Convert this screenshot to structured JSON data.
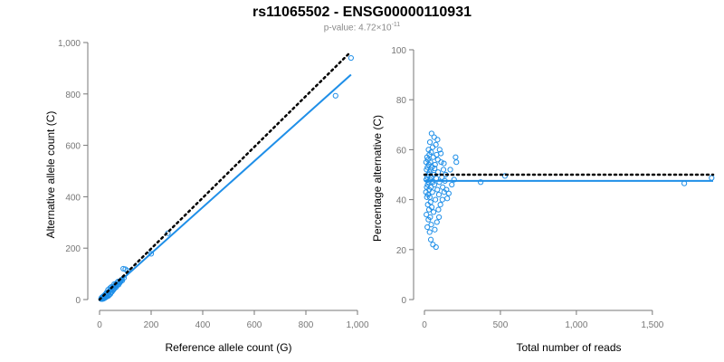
{
  "title": "rs11065502 - ENSG00000110931",
  "subtitle": {
    "prefix": "p-value: 4.72",
    "times": "×",
    "base": "10",
    "exponent": "-11"
  },
  "colors": {
    "points": "#1f8fe8",
    "fit": "#1f8fe8",
    "reference": "#000000",
    "axis": "#777777"
  },
  "chart_data": [
    {
      "type": "scatter",
      "xlabel": "Reference allele count (G)",
      "ylabel": "Alternative allele count (C)",
      "xlim": [
        0,
        1000
      ],
      "ylim": [
        0,
        1000
      ],
      "xticks": [
        0,
        200,
        400,
        600,
        800,
        1000
      ],
      "xtick_labels": [
        "0",
        "200",
        "400",
        "600",
        "800",
        "1,000"
      ],
      "yticks": [
        0,
        200,
        400,
        600,
        800,
        1000
      ],
      "ytick_labels": [
        "0",
        "200",
        "400",
        "600",
        "800",
        "1,000"
      ],
      "grid": false,
      "reference_line": {
        "style": "dotted",
        "x": [
          0,
          970
        ],
        "y": [
          0,
          960
        ]
      },
      "fit_line": {
        "style": "solid",
        "x": [
          0,
          975
        ],
        "y": [
          0,
          875
        ]
      },
      "points": [
        [
          975,
          940
        ],
        [
          915,
          793
        ],
        [
          265,
          258
        ],
        [
          200,
          178
        ],
        [
          108,
          112
        ],
        [
          100,
          118
        ],
        [
          92,
          120
        ],
        [
          95,
          85
        ],
        [
          86,
          78
        ],
        [
          82,
          72
        ],
        [
          78,
          65
        ],
        [
          72,
          70
        ],
        [
          70,
          60
        ],
        [
          66,
          55
        ],
        [
          64,
          48
        ],
        [
          60,
          52
        ],
        [
          58,
          44
        ],
        [
          55,
          40
        ],
        [
          52,
          36
        ],
        [
          50,
          44
        ],
        [
          48,
          30
        ],
        [
          45,
          38
        ],
        [
          44,
          28
        ],
        [
          42,
          22
        ],
        [
          40,
          34
        ],
        [
          38,
          18
        ],
        [
          36,
          30
        ],
        [
          35,
          26
        ],
        [
          34,
          14
        ],
        [
          32,
          24
        ],
        [
          30,
          20
        ],
        [
          29,
          12
        ],
        [
          28,
          28
        ],
        [
          27,
          18
        ],
        [
          26,
          10
        ],
        [
          25,
          22
        ],
        [
          24,
          15
        ],
        [
          23,
          8
        ],
        [
          22,
          20
        ],
        [
          21,
          12
        ],
        [
          20,
          6
        ],
        [
          19,
          16
        ],
        [
          18,
          10
        ],
        [
          17,
          4
        ],
        [
          16,
          14
        ],
        [
          15,
          8
        ],
        [
          14,
          3
        ],
        [
          13,
          11
        ],
        [
          12,
          6
        ],
        [
          11,
          2
        ],
        [
          10,
          9
        ],
        [
          9,
          5
        ],
        [
          8,
          3
        ],
        [
          7,
          6
        ],
        [
          6,
          2
        ],
        [
          33,
          38
        ],
        [
          41,
          45
        ],
        [
          47,
          50
        ],
        [
          53,
          48
        ],
        [
          57,
          60
        ],
        [
          62,
          58
        ],
        [
          68,
          66
        ],
        [
          74,
          58
        ],
        [
          80,
          68
        ],
        [
          88,
          74
        ]
      ]
    },
    {
      "type": "scatter",
      "xlabel": "Total number of reads",
      "ylabel": "Percentage alternative (C)",
      "xlim": [
        0,
        1900
      ],
      "ylim": [
        0,
        100
      ],
      "xticks": [
        0,
        500,
        1000,
        1500
      ],
      "xtick_labels": [
        "0",
        "500",
        "1,000",
        "1,500"
      ],
      "yticks": [
        0,
        20,
        40,
        60,
        80,
        100
      ],
      "ytick_labels": [
        "0",
        "20",
        "40",
        "60",
        "80",
        "100"
      ],
      "grid": false,
      "reference_line": {
        "style": "dotted",
        "y": 50
      },
      "fit_line": {
        "style": "solid",
        "y": 47.5
      },
      "points": [
        [
          1890,
          48.7
        ],
        [
          1710,
          46.5
        ],
        [
          530,
          49.5
        ],
        [
          370,
          47.0
        ],
        [
          210,
          55.0
        ],
        [
          205,
          57.0
        ],
        [
          195,
          48.0
        ],
        [
          180,
          46.0
        ],
        [
          170,
          52.0
        ],
        [
          160,
          42.5
        ],
        [
          150,
          40.5
        ],
        [
          145,
          44.0
        ],
        [
          140,
          50.0
        ],
        [
          135,
          47.5
        ],
        [
          130,
          43.0
        ],
        [
          125,
          52.0
        ],
        [
          120,
          45.0
        ],
        [
          115,
          49.0
        ],
        [
          110,
          55.0
        ],
        [
          105,
          38.0
        ],
        [
          100,
          60.0
        ],
        [
          98,
          47.0
        ],
        [
          95,
          42.0
        ],
        [
          92,
          36.0
        ],
        [
          90,
          51.0
        ],
        [
          88,
          56.0
        ],
        [
          85,
          44.0
        ],
        [
          82,
          31.0
        ],
        [
          80,
          58.0
        ],
        [
          78,
          48.5
        ],
        [
          75,
          62.0
        ],
        [
          72,
          40.0
        ],
        [
          70,
          54.0
        ],
        [
          68,
          28.0
        ],
        [
          66,
          46.0
        ],
        [
          64,
          65.0
        ],
        [
          62,
          50.0
        ],
        [
          60,
          35.0
        ],
        [
          58,
          57.0
        ],
        [
          56,
          22.0
        ],
        [
          55,
          47.0
        ],
        [
          54,
          61.0
        ],
        [
          52,
          43.0
        ],
        [
          50,
          53.0
        ],
        [
          48,
          37.0
        ],
        [
          47,
          66.5
        ],
        [
          46,
          49.0
        ],
        [
          45,
          30.0
        ],
        [
          44,
          59.0
        ],
        [
          43,
          45.0
        ],
        [
          42,
          24.0
        ],
        [
          41,
          52.0
        ],
        [
          40,
          39.0
        ],
        [
          39,
          55.0
        ],
        [
          38,
          33.0
        ],
        [
          37,
          48.0
        ],
        [
          36,
          63.0
        ],
        [
          35,
          41.0
        ],
        [
          34,
          27.0
        ],
        [
          33,
          51.0
        ],
        [
          32,
          58.0
        ],
        [
          31,
          44.0
        ],
        [
          30,
          36.0
        ],
        [
          29,
          54.0
        ],
        [
          28,
          47.0
        ],
        [
          27,
          60.0
        ],
        [
          26,
          32.0
        ],
        [
          25,
          50.0
        ],
        [
          24,
          42.0
        ],
        [
          23,
          56.0
        ],
        [
          22,
          38.0
        ],
        [
          21,
          46.0
        ],
        [
          20,
          53.0
        ],
        [
          19,
          29.0
        ],
        [
          18,
          49.0
        ],
        [
          17,
          57.0
        ],
        [
          16,
          41.0
        ],
        [
          15,
          45.0
        ],
        [
          14,
          52.0
        ],
        [
          13,
          34.0
        ],
        [
          12,
          48.0
        ],
        [
          11,
          55.0
        ],
        [
          10,
          43.0
        ],
        [
          76,
          21.0
        ],
        [
          86,
          64.0
        ],
        [
          108,
          58.5
        ],
        [
          118,
          40.0
        ],
        [
          128,
          54.5
        ],
        [
          96,
          33.0
        ],
        [
          67,
          52.5
        ]
      ]
    }
  ]
}
